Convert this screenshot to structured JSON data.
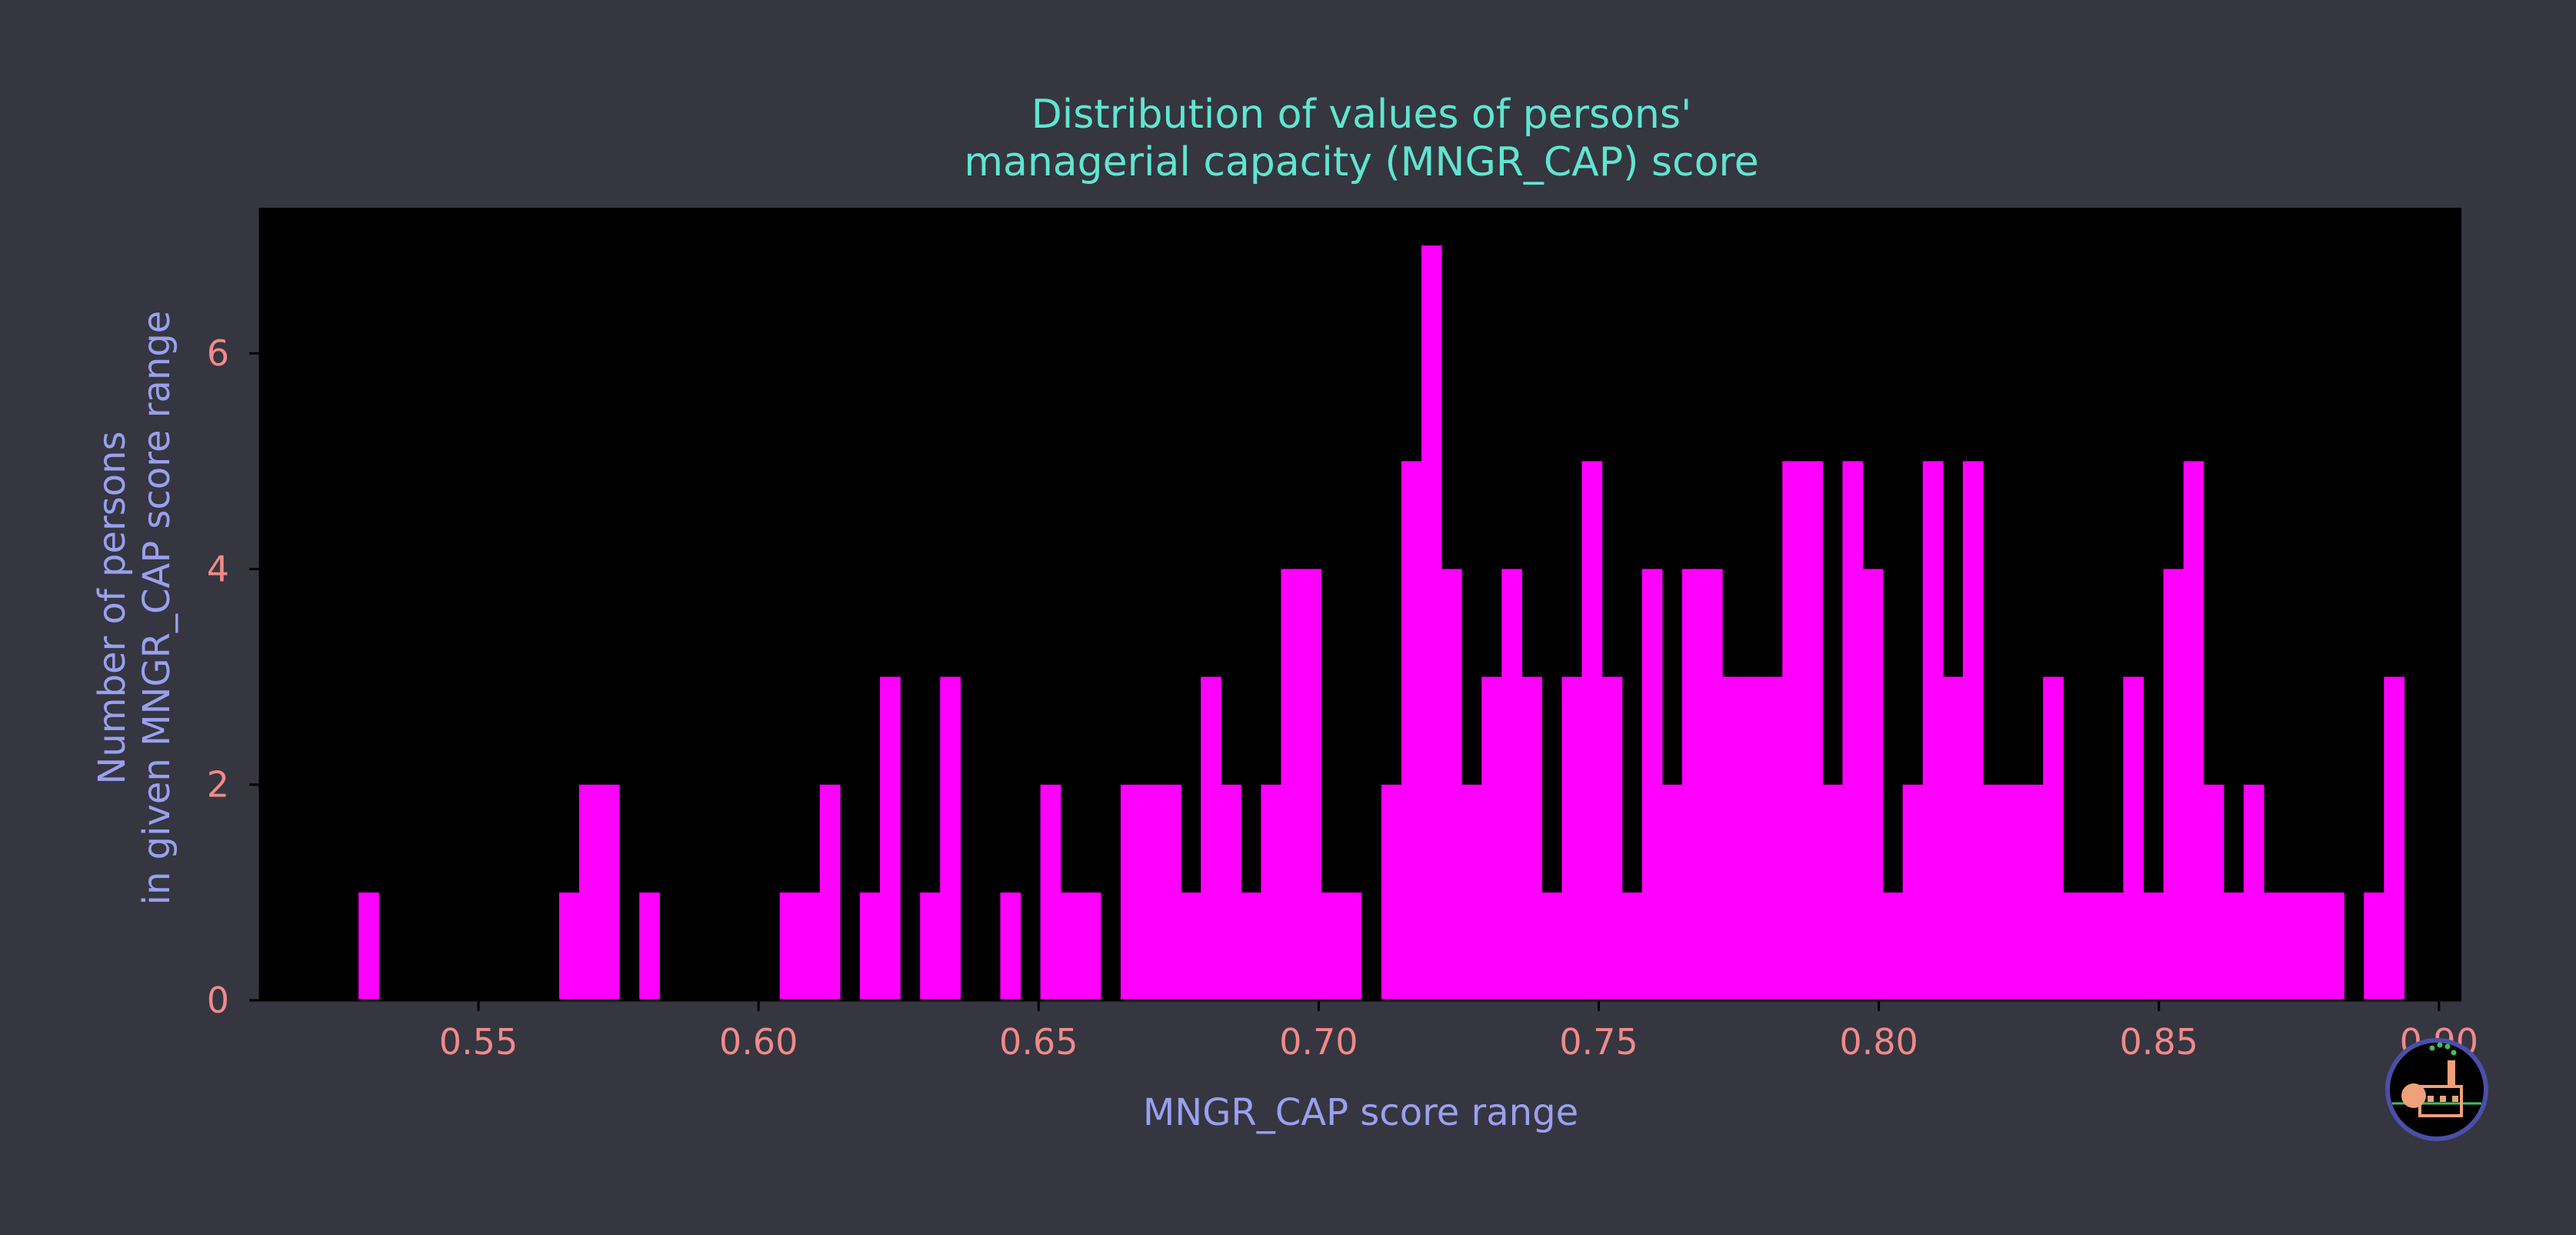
{
  "colors": {
    "background": "#353640",
    "plot_background": "#000000",
    "bar": "#ff00ff",
    "title": "#5fe6cf",
    "axis_label": "#9aa0ee",
    "tick_label": "#f08a8a",
    "axis_line": "#000000",
    "logo_ring": "#4b4fa8"
  },
  "logo": {
    "icon": "factory-logo-icon"
  },
  "chart_data": {
    "type": "bar",
    "title": "Distribution of values of persons'\nmanagerial capacity (MNGR_CAP) score",
    "xlabel": "MNGR_CAP score range",
    "ylabel": "Number of persons\nin given MNGR_CAP score range",
    "xlim": [
      0.511,
      0.904
    ],
    "ylim": [
      0,
      7.35
    ],
    "xticks": [
      0.55,
      0.6,
      0.65,
      0.7,
      0.75,
      0.8,
      0.85,
      0.9
    ],
    "xtick_labels": [
      "0.55",
      "0.60",
      "0.65",
      "0.70",
      "0.75",
      "0.80",
      "0.85",
      "0.90"
    ],
    "yticks": [
      0,
      2,
      4,
      6
    ],
    "ytick_labels": [
      "0",
      "2",
      "4",
      "6"
    ],
    "bin_start": 0.5286,
    "bin_width": 0.00358,
    "counts": [
      1,
      0,
      0,
      0,
      0,
      0,
      0,
      0,
      0,
      0,
      1,
      2,
      2,
      0,
      1,
      0,
      0,
      0,
      0,
      0,
      0,
      1,
      1,
      2,
      0,
      1,
      3,
      0,
      1,
      3,
      0,
      0,
      1,
      0,
      2,
      1,
      1,
      0,
      2,
      2,
      2,
      1,
      3,
      2,
      1,
      2,
      4,
      4,
      1,
      1,
      0,
      2,
      5,
      7,
      4,
      2,
      3,
      4,
      3,
      1,
      3,
      5,
      3,
      1,
      4,
      2,
      4,
      4,
      3,
      3,
      3,
      5,
      5,
      2,
      5,
      4,
      1,
      2,
      5,
      3,
      5,
      2,
      2,
      2,
      3,
      1,
      1,
      1,
      3,
      1,
      4,
      5,
      2,
      1,
      2,
      1,
      1,
      1,
      1,
      0,
      1,
      3
    ],
    "grid": false,
    "legend": "none"
  }
}
